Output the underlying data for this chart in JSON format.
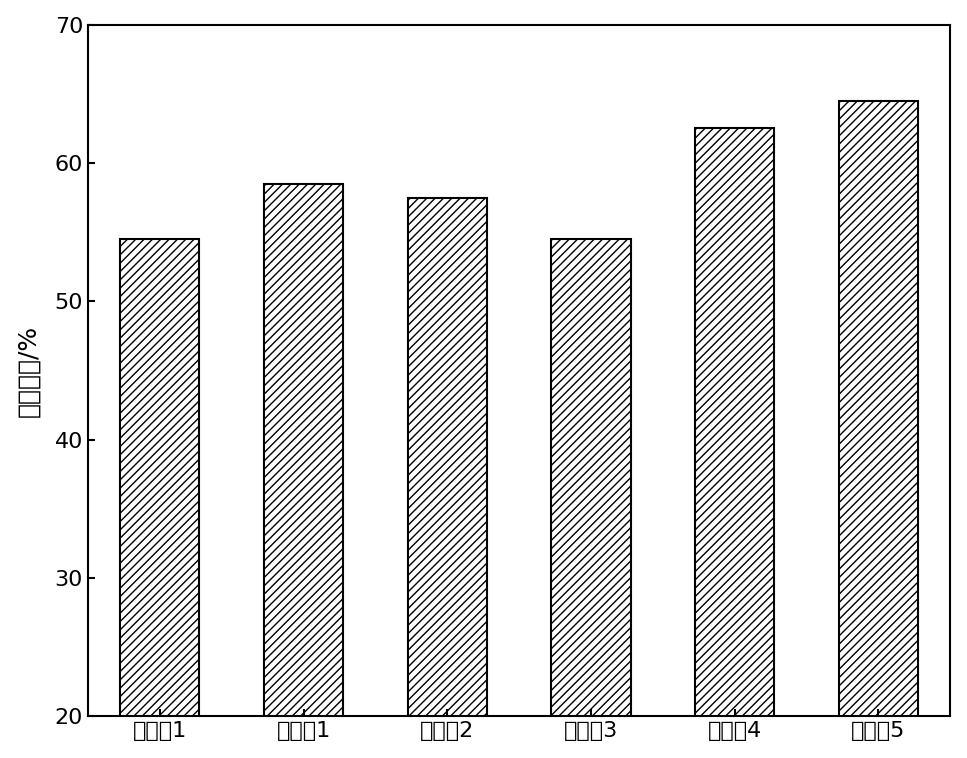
{
  "categories": [
    "对比例1",
    "实施例1",
    "实施例2",
    "实施例3",
    "实施例4",
    "实施例5"
  ],
  "values": [
    54.5,
    58.5,
    57.5,
    54.5,
    62.5,
    64.5
  ],
  "ylabel": "摩尔收率/%",
  "ylim": [
    20,
    70
  ],
  "yticks": [
    20,
    30,
    40,
    50,
    60,
    70
  ],
  "bar_color": "#ffffff",
  "bar_edgecolor": "#000000",
  "hatch": "////",
  "bar_width": 0.55,
  "background_color": "#ffffff",
  "figsize": [
    9.67,
    7.58
  ],
  "dpi": 100,
  "tick_fontsize": 16,
  "ylabel_fontsize": 18,
  "spine_linewidth": 1.5
}
